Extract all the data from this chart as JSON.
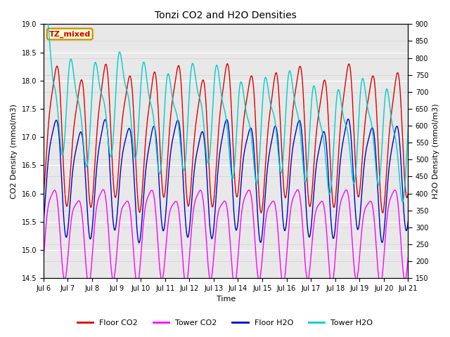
{
  "title": "Tonzi CO2 and H2O Densities",
  "xlabel": "Time",
  "ylabel_left": "CO2 Density (mmol/m3)",
  "ylabel_right": "H2O Density (mmol/m3)",
  "ylim_left": [
    14.5,
    19.0
  ],
  "ylim_right": [
    150,
    900
  ],
  "annotation": "TZ_mixed",
  "annotation_facecolor": "#ffffcc",
  "annotation_edgecolor": "#cc8800",
  "annotation_textcolor": "#cc0000",
  "background_color": "#ffffff",
  "plot_bg_color": "#e8e8e8",
  "grid_color": "#ffffff",
  "colors": {
    "floor_co2": "#dd0000",
    "tower_co2": "#ff00ff",
    "floor_h2o": "#0000cc",
    "tower_h2o": "#00cccc"
  },
  "legend_labels": [
    "Floor CO2",
    "Tower CO2",
    "Floor H2O",
    "Tower H2O"
  ],
  "n_points": 3000,
  "seed": 42
}
